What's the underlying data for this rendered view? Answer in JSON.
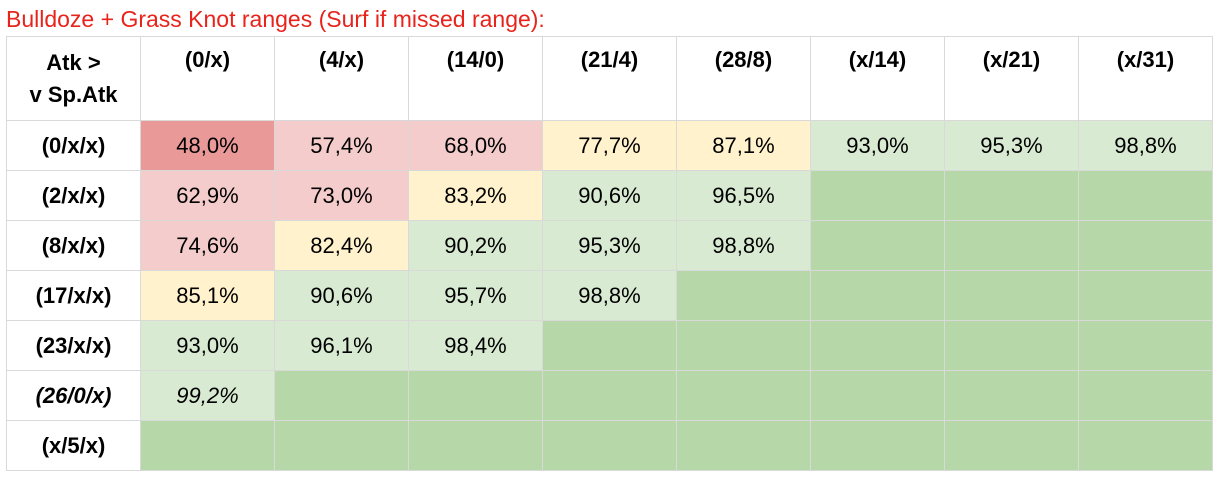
{
  "title": "Bulldoze + Grass Knot ranges (Surf if missed range):",
  "corner_label_line1": "Atk >",
  "corner_label_line2": "v Sp.Atk",
  "columns": [
    "(0/x)",
    "(4/x)",
    "(14/0)",
    "(21/4)",
    "(28/8)",
    "(x/14)",
    "(x/21)",
    "(x/31)"
  ],
  "colors": {
    "red_strong": "#ea9999",
    "red_light": "#f4cccc",
    "yellow": "#fff2cc",
    "green_light": "#d9ead3",
    "green": "#b6d7a8"
  },
  "rows": [
    {
      "label": "(0/x/x)",
      "italic": false,
      "cells": [
        {
          "value": "48,0%",
          "color": "red_strong"
        },
        {
          "value": "57,4%",
          "color": "red_light"
        },
        {
          "value": "68,0%",
          "color": "red_light"
        },
        {
          "value": "77,7%",
          "color": "yellow"
        },
        {
          "value": "87,1%",
          "color": "yellow"
        },
        {
          "value": "93,0%",
          "color": "green_light"
        },
        {
          "value": "95,3%",
          "color": "green_light"
        },
        {
          "value": "98,8%",
          "color": "green_light"
        }
      ]
    },
    {
      "label": "(2/x/x)",
      "italic": false,
      "cells": [
        {
          "value": "62,9%",
          "color": "red_light"
        },
        {
          "value": "73,0%",
          "color": "red_light"
        },
        {
          "value": "83,2%",
          "color": "yellow"
        },
        {
          "value": "90,6%",
          "color": "green_light"
        },
        {
          "value": "96,5%",
          "color": "green_light"
        },
        {
          "value": "",
          "color": "green"
        },
        {
          "value": "",
          "color": "green"
        },
        {
          "value": "",
          "color": "green"
        }
      ]
    },
    {
      "label": "(8/x/x)",
      "italic": false,
      "cells": [
        {
          "value": "74,6%",
          "color": "red_light"
        },
        {
          "value": "82,4%",
          "color": "yellow"
        },
        {
          "value": "90,2%",
          "color": "green_light"
        },
        {
          "value": "95,3%",
          "color": "green_light"
        },
        {
          "value": "98,8%",
          "color": "green_light"
        },
        {
          "value": "",
          "color": "green"
        },
        {
          "value": "",
          "color": "green"
        },
        {
          "value": "",
          "color": "green"
        }
      ]
    },
    {
      "label": "(17/x/x)",
      "italic": false,
      "cells": [
        {
          "value": "85,1%",
          "color": "yellow"
        },
        {
          "value": "90,6%",
          "color": "green_light"
        },
        {
          "value": "95,7%",
          "color": "green_light"
        },
        {
          "value": "98,8%",
          "color": "green_light"
        },
        {
          "value": "",
          "color": "green"
        },
        {
          "value": "",
          "color": "green"
        },
        {
          "value": "",
          "color": "green"
        },
        {
          "value": "",
          "color": "green"
        }
      ]
    },
    {
      "label": "(23/x/x)",
      "italic": false,
      "cells": [
        {
          "value": "93,0%",
          "color": "green_light"
        },
        {
          "value": "96,1%",
          "color": "green_light"
        },
        {
          "value": "98,4%",
          "color": "green_light"
        },
        {
          "value": "",
          "color": "green"
        },
        {
          "value": "",
          "color": "green"
        },
        {
          "value": "",
          "color": "green"
        },
        {
          "value": "",
          "color": "green"
        },
        {
          "value": "",
          "color": "green"
        }
      ]
    },
    {
      "label": "(26/0/x)",
      "italic": true,
      "cells": [
        {
          "value": "99,2%",
          "color": "green_light"
        },
        {
          "value": "",
          "color": "green"
        },
        {
          "value": "",
          "color": "green"
        },
        {
          "value": "",
          "color": "green"
        },
        {
          "value": "",
          "color": "green"
        },
        {
          "value": "",
          "color": "green"
        },
        {
          "value": "",
          "color": "green"
        },
        {
          "value": "",
          "color": "green"
        }
      ]
    },
    {
      "label": "(x/5/x)",
      "italic": false,
      "cells": [
        {
          "value": "",
          "color": "green"
        },
        {
          "value": "",
          "color": "green"
        },
        {
          "value": "",
          "color": "green"
        },
        {
          "value": "",
          "color": "green"
        },
        {
          "value": "",
          "color": "green"
        },
        {
          "value": "",
          "color": "green"
        },
        {
          "value": "",
          "color": "green"
        },
        {
          "value": "",
          "color": "green"
        }
      ]
    }
  ]
}
